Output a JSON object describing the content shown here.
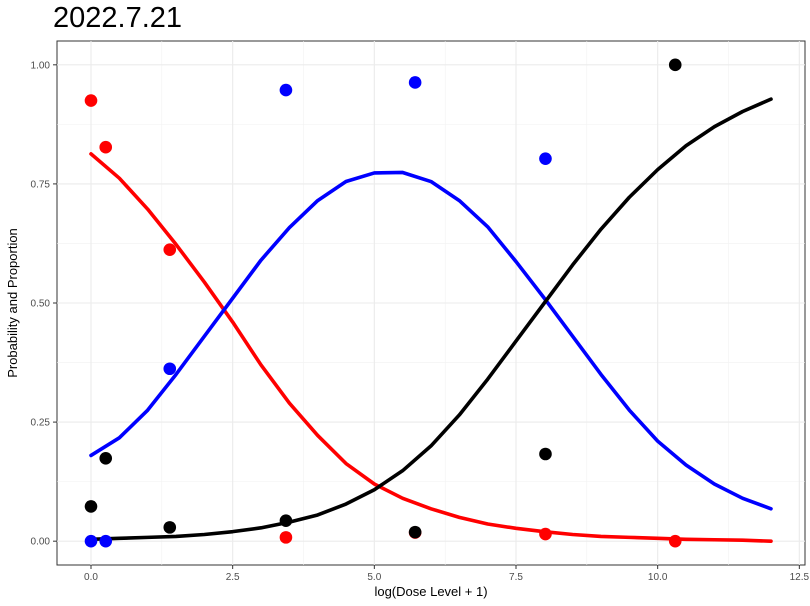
{
  "chart_data": {
    "type": "scatter",
    "title": "2022.7.21",
    "xlabel": "log(Dose Level + 1)",
    "ylabel": "Probability and Proportion",
    "xlim": [
      -0.6,
      12.6
    ],
    "ylim": [
      -0.05,
      1.05
    ],
    "x_ticks": [
      0,
      2.5,
      5,
      7.5,
      10,
      12.5
    ],
    "x_tick_labels": [
      "0.0",
      "2.5",
      "5.0",
      "7.5",
      "10.0",
      "12.5"
    ],
    "y_ticks": [
      0,
      0.25,
      0.5,
      0.75,
      1
    ],
    "y_tick_labels": [
      "0.00",
      "0.25",
      "0.50",
      "0.75",
      "1.00"
    ],
    "grid": true,
    "series": [
      {
        "color": "#ff0000",
        "points": [
          [
            0.0,
            0.925
          ],
          [
            0.26,
            0.827
          ],
          [
            1.39,
            0.612
          ],
          [
            3.44,
            0.008
          ],
          [
            5.72,
            0.018
          ],
          [
            8.02,
            0.015
          ],
          [
            10.31,
            0.0
          ]
        ],
        "curve": [
          [
            0.0,
            0.813
          ],
          [
            0.5,
            0.762
          ],
          [
            1.0,
            0.697
          ],
          [
            1.5,
            0.623
          ],
          [
            2.0,
            0.544
          ],
          [
            2.5,
            0.46
          ],
          [
            3.0,
            0.37
          ],
          [
            3.5,
            0.29
          ],
          [
            4.0,
            0.222
          ],
          [
            4.5,
            0.163
          ],
          [
            5.0,
            0.12
          ],
          [
            5.5,
            0.09
          ],
          [
            6.0,
            0.068
          ],
          [
            6.5,
            0.05
          ],
          [
            7.0,
            0.036
          ],
          [
            7.5,
            0.027
          ],
          [
            8.0,
            0.02
          ],
          [
            8.5,
            0.014
          ],
          [
            9.0,
            0.01
          ],
          [
            9.5,
            0.008
          ],
          [
            10.0,
            0.006
          ],
          [
            10.5,
            0.004
          ],
          [
            11.0,
            0.003
          ],
          [
            11.5,
            0.002
          ],
          [
            12.0,
            0.0
          ]
        ]
      },
      {
        "color": "#0000ff",
        "points": [
          [
            0.0,
            0.0
          ],
          [
            0.26,
            0.0
          ],
          [
            1.39,
            0.362
          ],
          [
            3.44,
            0.947
          ],
          [
            5.72,
            0.963
          ],
          [
            8.02,
            0.803
          ]
        ],
        "curve": [
          [
            0.0,
            0.18
          ],
          [
            0.5,
            0.217
          ],
          [
            1.0,
            0.275
          ],
          [
            1.5,
            0.35
          ],
          [
            2.0,
            0.43
          ],
          [
            2.5,
            0.51
          ],
          [
            3.0,
            0.59
          ],
          [
            3.5,
            0.658
          ],
          [
            4.0,
            0.715
          ],
          [
            4.5,
            0.755
          ],
          [
            5.0,
            0.773
          ],
          [
            5.5,
            0.774
          ],
          [
            6.0,
            0.755
          ],
          [
            6.5,
            0.715
          ],
          [
            7.0,
            0.66
          ],
          [
            7.5,
            0.587
          ],
          [
            8.0,
            0.51
          ],
          [
            8.5,
            0.43
          ],
          [
            9.0,
            0.35
          ],
          [
            9.5,
            0.275
          ],
          [
            10.0,
            0.21
          ],
          [
            10.5,
            0.16
          ],
          [
            11.0,
            0.12
          ],
          [
            11.5,
            0.09
          ],
          [
            12.0,
            0.068
          ]
        ]
      },
      {
        "color": "#000000",
        "points": [
          [
            0.0,
            0.073
          ],
          [
            0.26,
            0.174
          ],
          [
            1.39,
            0.029
          ],
          [
            3.44,
            0.043
          ],
          [
            5.72,
            0.019
          ],
          [
            8.02,
            0.183
          ],
          [
            10.31,
            1.0
          ]
        ],
        "curve": [
          [
            0.0,
            0.004
          ],
          [
            0.5,
            0.006
          ],
          [
            1.0,
            0.008
          ],
          [
            1.5,
            0.01
          ],
          [
            2.0,
            0.014
          ],
          [
            2.5,
            0.02
          ],
          [
            3.0,
            0.028
          ],
          [
            3.5,
            0.04
          ],
          [
            4.0,
            0.055
          ],
          [
            4.5,
            0.078
          ],
          [
            5.0,
            0.108
          ],
          [
            5.5,
            0.148
          ],
          [
            6.0,
            0.2
          ],
          [
            6.5,
            0.265
          ],
          [
            7.0,
            0.34
          ],
          [
            7.5,
            0.42
          ],
          [
            8.0,
            0.5
          ],
          [
            8.5,
            0.58
          ],
          [
            9.0,
            0.655
          ],
          [
            9.5,
            0.722
          ],
          [
            10.0,
            0.78
          ],
          [
            10.5,
            0.83
          ],
          [
            11.0,
            0.87
          ],
          [
            11.5,
            0.902
          ],
          [
            12.0,
            0.928
          ]
        ]
      }
    ]
  }
}
